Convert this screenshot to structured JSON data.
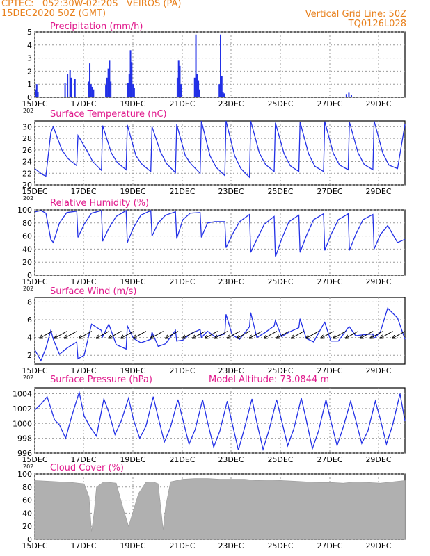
{
  "header": {
    "line1": "CPTEC:   052:30W-02:20S   VEIROS (PA)",
    "line2": "15DEC2020 50Z (GMT)",
    "grid_note": "Vertical Grid Line: 50Z",
    "code": "TQ0126L028"
  },
  "colors": {
    "accent": "#e8801c",
    "title": "#e0198c",
    "series": "#2230e6",
    "cloud": "#b0b0b0"
  },
  "x_ticks": [
    "15DEC",
    "17DEC",
    "19DEC",
    "21DEC",
    "23DEC",
    "25DEC",
    "27DEC",
    "29DEC"
  ],
  "axis_stub": "202",
  "model_altitude": "Model Altitude: 73.0844 m",
  "chart_data": [
    {
      "id": "precip",
      "type": "bar",
      "title": "Precipitation (mm/h)",
      "x_range_days": [
        0,
        15
      ],
      "ylim": [
        0,
        5
      ],
      "yticks": [
        "0",
        "1",
        "2",
        "3",
        "4",
        "5"
      ],
      "series": [
        {
          "name": "Precipitation",
          "unit": "mm/h",
          "bars": [
            [
              0.0,
              0.6
            ],
            [
              0.05,
              1.0
            ],
            [
              0.1,
              0.4
            ],
            [
              1.2,
              1.1
            ],
            [
              1.3,
              1.8
            ],
            [
              1.4,
              2.1
            ],
            [
              1.45,
              1.5
            ],
            [
              1.6,
              1.4
            ],
            [
              2.15,
              1.2
            ],
            [
              2.2,
              2.6
            ],
            [
              2.25,
              1.0
            ],
            [
              2.3,
              0.8
            ],
            [
              2.35,
              0.6
            ],
            [
              2.85,
              0.9
            ],
            [
              2.9,
              1.5
            ],
            [
              2.95,
              2.2
            ],
            [
              3.0,
              2.8
            ],
            [
              3.05,
              1.2
            ],
            [
              3.75,
              1.1
            ],
            [
              3.8,
              1.8
            ],
            [
              3.85,
              3.6
            ],
            [
              3.9,
              2.7
            ],
            [
              3.95,
              1.0
            ],
            [
              4.0,
              0.7
            ],
            [
              5.75,
              1.5
            ],
            [
              5.8,
              2.8
            ],
            [
              5.85,
              2.4
            ],
            [
              5.9,
              1.0
            ],
            [
              6.45,
              1.5
            ],
            [
              6.5,
              4.8
            ],
            [
              6.55,
              1.8
            ],
            [
              6.6,
              1.3
            ],
            [
              6.65,
              0.6
            ],
            [
              7.45,
              1.0
            ],
            [
              7.5,
              4.8
            ],
            [
              7.55,
              1.6
            ],
            [
              7.6,
              0.4
            ],
            [
              7.65,
              0.3
            ],
            [
              12.6,
              0.25
            ],
            [
              12.7,
              0.35
            ],
            [
              12.8,
              0.2
            ]
          ]
        }
      ]
    },
    {
      "id": "temp",
      "type": "line",
      "title": "Surface Temperature (nC)",
      "x_range_days": [
        0,
        15
      ],
      "ylim": [
        20,
        31
      ],
      "yticks": [
        "20",
        "22",
        "24",
        "26",
        "28",
        "30"
      ],
      "series": [
        {
          "name": "Temperature",
          "unit": "nC",
          "x": [
            0,
            0.3,
            0.45,
            0.65,
            0.75,
            1.1,
            1.35,
            1.7,
            1.75,
            2.1,
            2.35,
            2.7,
            2.75,
            3.1,
            3.35,
            3.7,
            3.75,
            4.1,
            4.35,
            4.7,
            4.75,
            5.1,
            5.35,
            5.7,
            5.75,
            6.1,
            6.35,
            6.7,
            6.75,
            7.1,
            7.35,
            7.7,
            7.75,
            8.1,
            8.35,
            8.7,
            8.75,
            9.1,
            9.35,
            9.7,
            9.75,
            10.1,
            10.35,
            10.7,
            10.75,
            11.1,
            11.35,
            11.7,
            11.75,
            12.1,
            12.35,
            12.7,
            12.75,
            13.1,
            13.35,
            13.7,
            13.75,
            14.1,
            14.35,
            14.7,
            15
          ],
          "y": [
            22.8,
            21.8,
            21.5,
            29.0,
            30.0,
            26.0,
            24.5,
            23.3,
            28.5,
            26.0,
            24.0,
            22.5,
            30.2,
            25.5,
            23.8,
            22.6,
            30.3,
            25.0,
            23.5,
            22.3,
            30.0,
            25.6,
            23.6,
            22.1,
            30.4,
            25.0,
            23.5,
            22.0,
            31.0,
            25.0,
            23.0,
            21.6,
            31.0,
            25.0,
            22.8,
            21.3,
            31.0,
            25.5,
            23.5,
            22.3,
            30.7,
            25.4,
            23.3,
            22.3,
            30.8,
            25.3,
            23.2,
            22.3,
            30.9,
            25.4,
            23.4,
            22.6,
            30.8,
            25.5,
            23.5,
            22.6,
            31.0,
            25.5,
            23.4,
            22.8,
            30.4
          ]
        }
      ]
    },
    {
      "id": "rh",
      "type": "line",
      "title": "Relative Humidity (%)",
      "x_range_days": [
        0,
        15
      ],
      "ylim": [
        0,
        100
      ],
      "yticks": [
        "0",
        "20",
        "40",
        "60",
        "80",
        "100"
      ],
      "series": [
        {
          "name": "Relative Humidity",
          "unit": "%",
          "x": [
            0,
            0.25,
            0.45,
            0.65,
            0.75,
            1.0,
            1.3,
            1.7,
            1.75,
            2.0,
            2.3,
            2.7,
            2.75,
            3.0,
            3.3,
            3.7,
            3.75,
            4.0,
            4.3,
            4.7,
            4.75,
            5.0,
            5.3,
            5.7,
            5.75,
            6.0,
            6.3,
            6.7,
            6.75,
            7.0,
            7.3,
            7.7,
            7.75,
            8.0,
            8.3,
            8.7,
            8.75,
            9.0,
            9.3,
            9.7,
            9.75,
            10.0,
            10.3,
            10.7,
            10.75,
            11.0,
            11.3,
            11.7,
            11.75,
            12.0,
            12.3,
            12.7,
            12.75,
            13.0,
            13.3,
            13.7,
            13.75,
            14.0,
            14.3,
            14.7,
            15
          ],
          "y": [
            97,
            99,
            95,
            55,
            50,
            80,
            96,
            98,
            58,
            78,
            95,
            99,
            52,
            72,
            90,
            99,
            50,
            73,
            92,
            99,
            60,
            80,
            92,
            97,
            56,
            85,
            95,
            96,
            58,
            80,
            82,
            82,
            42,
            62,
            82,
            93,
            35,
            55,
            78,
            90,
            28,
            55,
            82,
            92,
            35,
            60,
            85,
            94,
            38,
            62,
            85,
            94,
            38,
            62,
            85,
            93,
            40,
            62,
            76,
            50,
            55
          ]
        }
      ]
    },
    {
      "id": "wind",
      "type": "line",
      "title": "Surface Wind (m/s)",
      "x_range_days": [
        0,
        15
      ],
      "ylim": [
        1,
        8.5
      ],
      "yticks": [
        "2",
        "4",
        "6",
        "8"
      ],
      "series": [
        {
          "name": "Wind speed",
          "unit": "m/s",
          "x": [
            0,
            0.25,
            0.45,
            0.65,
            0.75,
            1.0,
            1.3,
            1.7,
            1.75,
            2.0,
            2.3,
            2.7,
            2.75,
            3.0,
            3.3,
            3.7,
            3.75,
            4.0,
            4.3,
            4.7,
            4.75,
            5.0,
            5.3,
            5.7,
            5.75,
            6.0,
            6.3,
            6.7,
            6.75,
            7.0,
            7.3,
            7.7,
            7.75,
            8.0,
            8.3,
            8.7,
            8.75,
            9.0,
            9.3,
            9.7,
            9.75,
            10.0,
            10.3,
            10.7,
            10.75,
            11.0,
            11.3,
            11.7,
            11.75,
            12.0,
            12.3,
            12.7,
            12.75,
            13.0,
            13.3,
            13.7,
            13.75,
            14.0,
            14.3,
            14.7,
            15
          ],
          "y": [
            2.6,
            1.4,
            2.8,
            4.8,
            3.8,
            2.1,
            2.8,
            3.5,
            1.6,
            2.0,
            5.5,
            4.8,
            4.1,
            5.5,
            3.2,
            2.7,
            5.3,
            3.9,
            3.4,
            3.8,
            4.6,
            3.0,
            3.3,
            4.8,
            3.6,
            3.7,
            4.4,
            4.9,
            4.0,
            4.7,
            4.1,
            4.4,
            6.6,
            4.3,
            3.8,
            5.2,
            6.8,
            4.0,
            4.5,
            5.3,
            5.9,
            4.1,
            4.6,
            5.1,
            6.1,
            3.9,
            3.5,
            5.5,
            5.7,
            3.6,
            3.6,
            5.1,
            5.2,
            4.2,
            4.3,
            4.4,
            3.9,
            4.6,
            7.3,
            6.2,
            3.8
          ]
        }
      ],
      "arrows_days": [
        0.2,
        0.8,
        1.2,
        1.8,
        2.5,
        3.0,
        3.5,
        4.0,
        4.7,
        5.3,
        6.0,
        6.4,
        6.9,
        7.3,
        7.8,
        8.2,
        8.7,
        9.3,
        9.8,
        10.4,
        11.0,
        11.6,
        12.1,
        12.6,
        13.2,
        13.6,
        14.0,
        14.5
      ]
    },
    {
      "id": "press",
      "type": "line",
      "title": "Surface Pressure (hPa)",
      "x_range_days": [
        0,
        15
      ],
      "ylim": [
        996,
        1004.8
      ],
      "yticks": [
        "996",
        "998",
        "1000",
        "1002",
        "1004"
      ],
      "series": [
        {
          "name": "Pressure",
          "unit": "hPa",
          "x": [
            0,
            0.25,
            0.5,
            0.8,
            1.0,
            1.25,
            1.5,
            1.8,
            2.0,
            2.25,
            2.5,
            2.8,
            3.0,
            3.25,
            3.5,
            3.8,
            4.0,
            4.25,
            4.5,
            4.8,
            5.0,
            5.25,
            5.5,
            5.8,
            6.0,
            6.25,
            6.5,
            6.8,
            7.0,
            7.25,
            7.5,
            7.8,
            8.0,
            8.25,
            8.5,
            8.8,
            9.0,
            9.25,
            9.5,
            9.8,
            10.0,
            10.25,
            10.5,
            10.8,
            11.0,
            11.25,
            11.5,
            11.8,
            12.0,
            12.25,
            12.5,
            12.8,
            13.0,
            13.25,
            13.5,
            13.8,
            14.0,
            14.25,
            14.5,
            14.8,
            15
          ],
          "y": [
            1001.8,
            1002.6,
            1003.6,
            1000.5,
            999.8,
            998.0,
            1001.0,
            1004.2,
            1001.0,
            999.5,
            998.3,
            1003.3,
            1001.5,
            998.5,
            1000.3,
            1003.4,
            1000.5,
            998.0,
            999.6,
            1003.6,
            1000.8,
            997.5,
            999.5,
            1003.2,
            1000.5,
            997.2,
            999.2,
            1003.2,
            1000.2,
            996.8,
            999.0,
            1003.0,
            1000.0,
            996.4,
            999.4,
            1003.3,
            1000.1,
            996.5,
            999.2,
            1003.2,
            1000.4,
            997.0,
            999.3,
            1003.4,
            1000.5,
            996.6,
            999.0,
            1003.2,
            1000.3,
            997.0,
            999.5,
            1003.0,
            1000.5,
            997.3,
            999.0,
            1003.0,
            1000.6,
            997.2,
            999.8,
            1004.0,
            1000.3
          ]
        }
      ]
    },
    {
      "id": "cloud",
      "type": "area",
      "title": "Cloud Cover (%)",
      "x_range_days": [
        0,
        15
      ],
      "ylim": [
        0,
        100
      ],
      "yticks": [
        "0",
        "20",
        "40",
        "60",
        "80",
        "100"
      ],
      "series": [
        {
          "name": "Cloud cover",
          "unit": "%",
          "x": [
            0,
            0.5,
            1.0,
            1.5,
            2.0,
            2.2,
            2.3,
            2.4,
            2.5,
            2.8,
            3.3,
            3.6,
            3.8,
            4.2,
            4.5,
            4.8,
            5.0,
            5.2,
            5.3,
            5.5,
            6.0,
            6.5,
            7.0,
            7.5,
            8.0,
            8.5,
            9.0,
            9.5,
            10.0,
            10.5,
            11.0,
            11.5,
            12.0,
            12.5,
            13.0,
            13.5,
            14.0,
            14.5,
            15
          ],
          "y": [
            90,
            89,
            88,
            87,
            85,
            65,
            12,
            40,
            80,
            88,
            86,
            45,
            20,
            70,
            87,
            88,
            85,
            15,
            50,
            88,
            92,
            93,
            93,
            92,
            92,
            92,
            90,
            91,
            90,
            89,
            88,
            87,
            87,
            86,
            88,
            87,
            86,
            88,
            90
          ]
        }
      ]
    }
  ]
}
